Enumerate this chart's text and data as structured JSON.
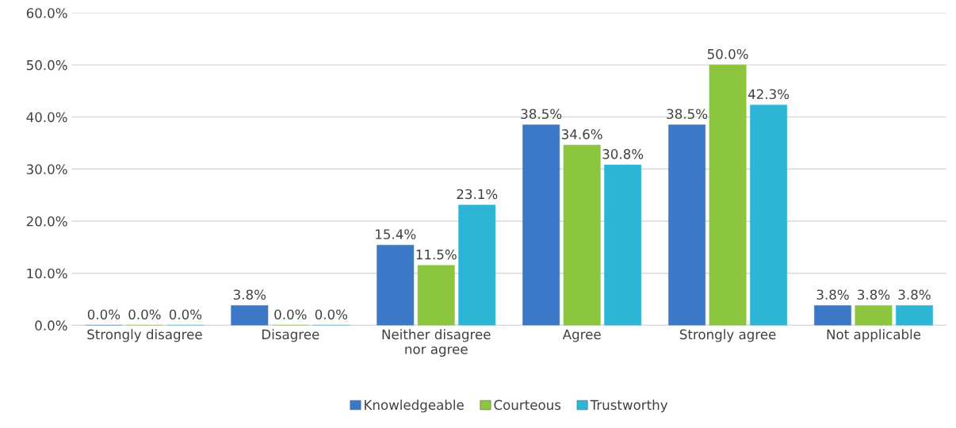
{
  "chart_data": {
    "type": "bar",
    "categories": [
      "Strongly disagree",
      "Disagree",
      "Neither disagree\nnor agree",
      "Agree",
      "Strongly agree",
      "Not applicable"
    ],
    "series": [
      {
        "name": "Knowledgeable",
        "color": "#3b78c8",
        "values": [
          0.0,
          3.8,
          15.4,
          38.5,
          38.5,
          3.8
        ],
        "value_labels": [
          "0.0%",
          "3.8%",
          "15.4%",
          "38.5%",
          "38.5%",
          "3.8%"
        ]
      },
      {
        "name": "Courteous",
        "color": "#8cc63e",
        "values": [
          0.0,
          0.0,
          11.5,
          34.6,
          50.0,
          3.8
        ],
        "value_labels": [
          "0.0%",
          "0.0%",
          "11.5%",
          "34.6%",
          "50.0%",
          "3.8%"
        ]
      },
      {
        "name": "Trustworthy",
        "color": "#2db5d5",
        "values": [
          0.0,
          0.0,
          23.1,
          30.8,
          42.3,
          3.8
        ],
        "value_labels": [
          "0.0%",
          "0.0%",
          "23.1%",
          "30.8%",
          "42.3%",
          "3.8%"
        ]
      }
    ],
    "ylim": [
      0,
      60
    ],
    "yticks": [
      {
        "value": 0,
        "label": "0.0%"
      },
      {
        "value": 10,
        "label": "10.0%"
      },
      {
        "value": 20,
        "label": "20.0%"
      },
      {
        "value": 30,
        "label": "30.0%"
      },
      {
        "value": 40,
        "label": "40.0%"
      },
      {
        "value": 50,
        "label": "50.0%"
      },
      {
        "value": 60,
        "label": "60.0%"
      }
    ],
    "grid": "y",
    "legend": "bottom"
  }
}
